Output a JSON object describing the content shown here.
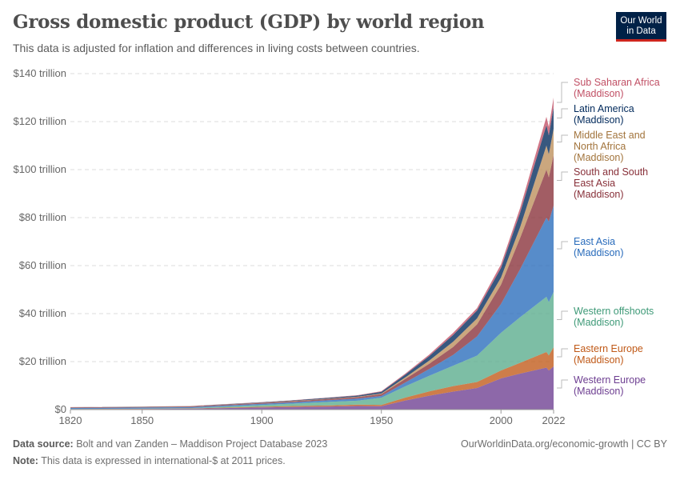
{
  "header": {
    "title": "Gross domestic product (GDP) by world region",
    "subtitle": "This data is adjusted for inflation and differences in living costs between countries.",
    "logo_text": "Our World in Data"
  },
  "footer": {
    "source_label": "Data source:",
    "source": "Bolt and van Zanden – Maddison Project Database 2023",
    "note_label": "Note:",
    "note": "This data is expressed in international-$ at 2011 prices.",
    "url": "OurWorldinData.org/economic-growth | CC BY"
  },
  "chart_data": {
    "type": "area",
    "stacked": true,
    "title": "Gross domestic product (GDP) by world region",
    "xlabel": "",
    "ylabel": "",
    "xlim": [
      1820,
      2022
    ],
    "ylim": [
      0,
      140
    ],
    "x_ticks": [
      "1820",
      "1850",
      "1900",
      "1950",
      "2000",
      "2022"
    ],
    "y_ticks": [
      "$0",
      "$20 trillion",
      "$40 trillion",
      "$60 trillion",
      "$80 trillion",
      "$100 trillion",
      "$120 trillion",
      "$140 trillion"
    ],
    "y_tick_values": [
      0,
      20,
      40,
      60,
      80,
      100,
      120,
      140
    ],
    "grid": "horizontal dashed",
    "legend": "right",
    "unit": "trillion international-$",
    "x": [
      1820,
      1850,
      1870,
      1900,
      1913,
      1929,
      1940,
      1950,
      1960,
      1970,
      1980,
      1990,
      2000,
      2008,
      2019,
      2020,
      2022
    ],
    "series": [
      {
        "name": "Western Europe (Maddison)",
        "color": "#6D3E91",
        "values": [
          0.16,
          0.25,
          0.38,
          0.9,
          1.1,
          1.3,
          1.5,
          1.4,
          3.8,
          5.8,
          7.5,
          9,
          13,
          15,
          17.5,
          16.3,
          18
        ]
      },
      {
        "name": "Eastern Europe (Maddison)",
        "color": "#C05917",
        "values": [
          0.06,
          0.09,
          0.13,
          0.3,
          0.4,
          0.45,
          0.6,
          0.55,
          1.2,
          1.8,
          2.3,
          2.5,
          3.3,
          4.5,
          6.5,
          6.3,
          8
        ]
      },
      {
        "name": "Western offshoots (Maddison)",
        "color": "#58AC8C",
        "values": [
          0.02,
          0.07,
          0.13,
          0.7,
          1.0,
          1.5,
          1.6,
          3.0,
          4.7,
          6.5,
          8.5,
          11,
          15.7,
          19,
          23,
          22.2,
          23
        ]
      },
      {
        "name": "East Asia (Maddison)",
        "color": "#286BBB",
        "values": [
          0.45,
          0.45,
          0.4,
          0.5,
          0.55,
          0.7,
          0.9,
          0.7,
          1.6,
          2.8,
          4.5,
          8,
          12,
          20,
          33,
          33.5,
          36
        ]
      },
      {
        "name": "South and South East Asia (Maddison)",
        "color": "#883039",
        "values": [
          0.25,
          0.28,
          0.3,
          0.4,
          0.45,
          0.55,
          0.6,
          0.8,
          1.5,
          2.2,
          3.3,
          5,
          8,
          13,
          20,
          18.5,
          21
        ]
      },
      {
        "name": "Middle East and North Africa (Maddison)",
        "color": "#BC8E5A",
        "values": [
          0.04,
          0.05,
          0.06,
          0.09,
          0.11,
          0.14,
          0.17,
          0.25,
          0.6,
          1.3,
          2.2,
          2.5,
          3,
          4.5,
          10,
          9.6,
          11
        ]
      },
      {
        "name": "Latin America (Maddison)",
        "color": "#00295B",
        "values": [
          0.03,
          0.04,
          0.05,
          0.15,
          0.22,
          0.35,
          0.45,
          0.7,
          1.2,
          1.9,
          2.8,
          3.3,
          4,
          6,
          8.5,
          7.9,
          9
        ]
      },
      {
        "name": "Sub Saharan Africa (Maddison)",
        "color": "#C15065",
        "values": [
          0.03,
          0.04,
          0.05,
          0.08,
          0.1,
          0.13,
          0.16,
          0.25,
          0.4,
          0.6,
          0.9,
          1,
          1.5,
          2,
          3.5,
          3.5,
          4
        ]
      }
    ],
    "labels": [
      {
        "lines": [
          "Sub Saharan Africa",
          "(Maddison)"
        ],
        "color": "#C15065"
      },
      {
        "lines": [
          "Latin America",
          "(Maddison)"
        ],
        "color": "#00295B"
      },
      {
        "lines": [
          "Middle East and",
          "North Africa",
          "(Maddison)"
        ],
        "color": "#A2743C"
      },
      {
        "lines": [
          "South and South",
          "East Asia",
          "(Maddison)"
        ],
        "color": "#883039"
      },
      {
        "lines": [
          "East Asia",
          "(Maddison)"
        ],
        "color": "#286BBB"
      },
      {
        "lines": [
          "Western offshoots",
          "(Maddison)"
        ],
        "color": "#3F9A78"
      },
      {
        "lines": [
          "Eastern Europe",
          "(Maddison)"
        ],
        "color": "#C05917"
      },
      {
        "lines": [
          "Western Europe",
          "(Maddison)"
        ],
        "color": "#6D3E91"
      }
    ]
  }
}
